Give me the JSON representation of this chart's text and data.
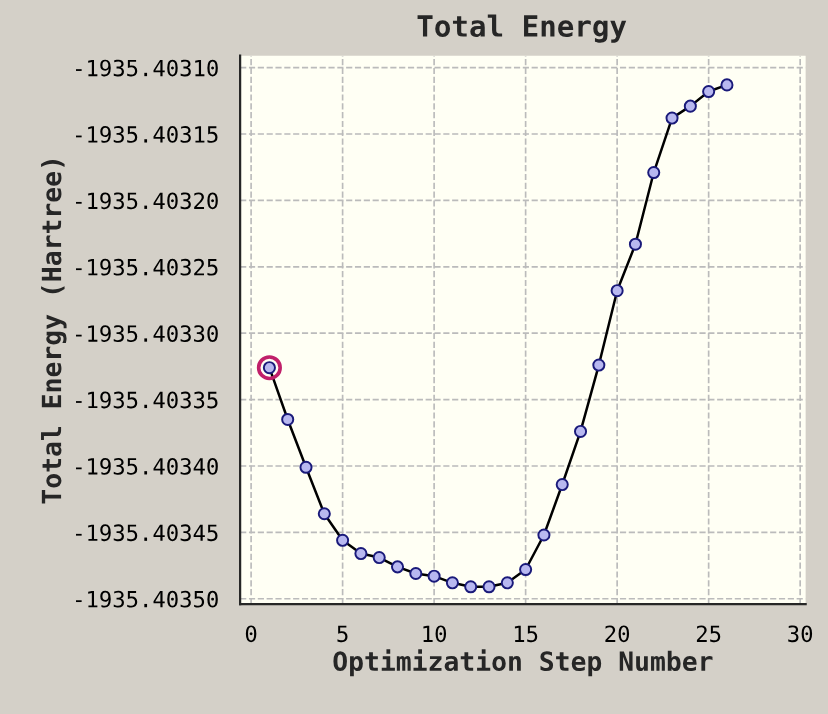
{
  "chart_data": {
    "type": "line",
    "title": "Total Energy",
    "xlabel": "Optimization Step Number",
    "ylabel": "Total Energy (Hartree)",
    "x": [
      1,
      2,
      3,
      4,
      5,
      6,
      7,
      8,
      9,
      10,
      11,
      12,
      13,
      14,
      15,
      16,
      17,
      18,
      19,
      20,
      21,
      22,
      23,
      24,
      25,
      26
    ],
    "series": [
      {
        "color": "#1a1a7a",
        "values": [
          -1935.403326,
          -1935.403365,
          -1935.403401,
          -1935.403436,
          -1935.403456,
          -1935.403466,
          -1935.403469,
          -1935.403476,
          -1935.403481,
          -1935.403483,
          -1935.403488,
          -1935.403491,
          -1935.403491,
          -1935.403488,
          -1935.403478,
          -1935.403452,
          -1935.403414,
          -1935.403374,
          -1935.403324,
          -1935.403268,
          -1935.403233,
          -1935.403179,
          -1935.403138,
          -1935.403129,
          -1935.403118,
          -1935.403113
        ]
      },
      {
        "type": "scatter",
        "color": "#c0206a",
        "values": [
          -1935.403326,
          null,
          null,
          null,
          null,
          null,
          null,
          null,
          null,
          null,
          null,
          null,
          null,
          null,
          null,
          null,
          null,
          null,
          null,
          null,
          null,
          null,
          null,
          null,
          null,
          null
        ]
      }
    ],
    "marker": "circle",
    "line_style": "solid",
    "grid": true,
    "legend": false,
    "xlim": [
      -0.6,
      30.3
    ],
    "xticks": [
      0,
      5,
      10,
      15,
      20,
      25,
      30
    ],
    "ylim": [
      -1935.403504,
      -1935.403091
    ],
    "yticks": [
      {
        "value": -1935.4031,
        "label": "-1935.40310"
      },
      {
        "value": -1935.40315,
        "label": "-1935.40315"
      },
      {
        "value": -1935.4032,
        "label": "-1935.40320"
      },
      {
        "value": -1935.40325,
        "label": "-1935.40325"
      },
      {
        "value": -1935.4033,
        "label": "-1935.40330"
      },
      {
        "value": -1935.40335,
        "label": "-1935.40335"
      },
      {
        "value": -1935.4034,
        "label": "-1935.40340"
      },
      {
        "value": -1935.40345,
        "label": "-1935.40345"
      },
      {
        "value": -1935.4035,
        "label": "-1935.40350"
      }
    ]
  }
}
